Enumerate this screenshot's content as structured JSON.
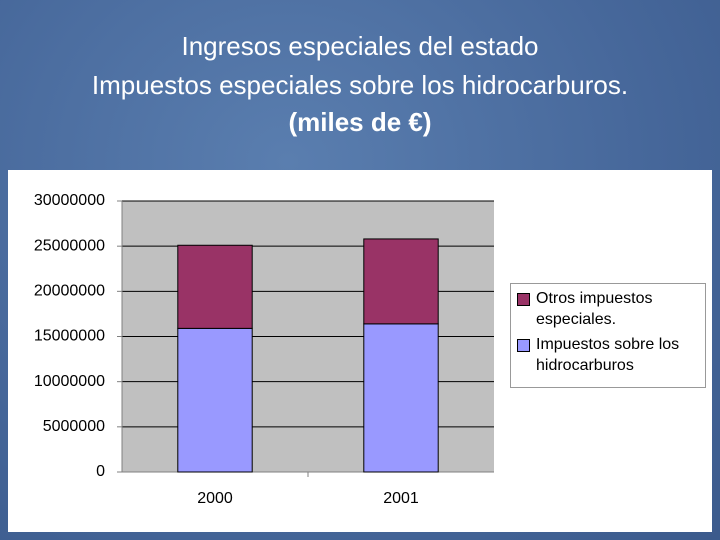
{
  "chart_data": {
    "type": "bar",
    "stacked": true,
    "title_lines": [
      "Ingresos especiales del estado",
      "Impuestos especiales sobre los hidrocarburos.",
      "(miles de €)"
    ],
    "categories": [
      "2000",
      "2001"
    ],
    "series": [
      {
        "name": "Impuestos sobre los hidrocarburos",
        "color": "#9999ff",
        "values": [
          15900000,
          16400000
        ]
      },
      {
        "name": "Otros impuestos especiales.",
        "color": "#993366",
        "values": [
          9200000,
          9400000
        ]
      }
    ],
    "ylim": [
      0,
      30000000
    ],
    "yticks": [
      0,
      5000000,
      10000000,
      15000000,
      20000000,
      25000000,
      30000000
    ],
    "grid": true,
    "legend": "right"
  }
}
